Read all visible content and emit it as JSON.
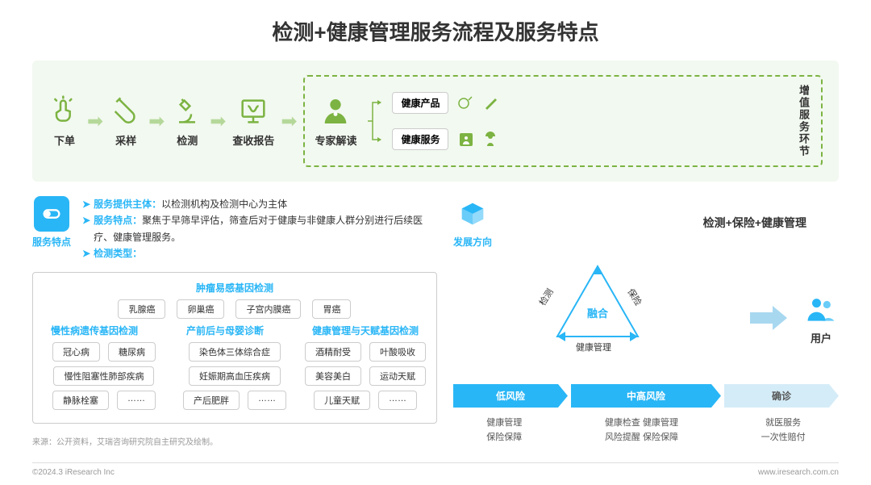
{
  "title": "检测+健康管理服务流程及服务特点",
  "process": {
    "steps": [
      "下单",
      "采样",
      "检测",
      "查收报告",
      "专家解读"
    ],
    "branches": [
      "健康产品",
      "健康服务"
    ],
    "vert": "增值服务环节"
  },
  "features": {
    "badge": "服务特点",
    "bullets": [
      {
        "t": "服务提供主体：",
        "d": "以检测机构及检测中心为主体"
      },
      {
        "t": "服务特点：",
        "d": "聚焦于早筛早评估，筛查后对于健康与非健康人群分别进行后续医疗、健康管理服务。"
      },
      {
        "t": "检测类型：",
        "d": ""
      }
    ]
  },
  "categories": {
    "sec1": {
      "header": "肿瘤易感基因检测",
      "tags": [
        "乳腺癌",
        "卵巢癌",
        "子宫内膜癌",
        "胃癌"
      ]
    },
    "headers2": [
      "慢性病遗传基因检测",
      "产前后与母婴诊断",
      "健康管理与天赋基因检测"
    ],
    "rows": [
      [
        [
          "冠心病",
          "糖尿病"
        ],
        [
          "染色体三体综合症"
        ],
        [
          "酒精耐受",
          "叶酸吸收"
        ]
      ],
      [
        [
          "慢性阻塞性肺部疾病"
        ],
        [
          "妊娠期高血压疾病"
        ],
        [
          "美容美白",
          "运动天赋"
        ]
      ],
      [
        [
          "静脉栓塞",
          "……"
        ],
        [
          "产后肥胖",
          "……"
        ],
        [
          "儿童天赋",
          "……"
        ]
      ]
    ]
  },
  "dev": {
    "badge": "发展方向",
    "title": "检测+保险+健康管理",
    "triangle": {
      "center": "融合",
      "labels": [
        "检测",
        "保险",
        "健康管理"
      ]
    },
    "user": "用户"
  },
  "risk": {
    "arrows": [
      "低风险",
      "中高风险",
      "确诊"
    ],
    "cols": [
      [
        "健康管理",
        "保险保障"
      ],
      [
        "健康检查  健康管理",
        "风险提醒  保险保障"
      ],
      [
        "就医服务",
        "一次性赔付"
      ]
    ]
  },
  "source": "来源：公开资料，艾瑞咨询研究院自主研究及绘制。",
  "footer": {
    "left": "©2024.3 iResearch Inc",
    "right": "www.iresearch.com.cn"
  },
  "colors": {
    "green": "#7cb342",
    "blue": "#29b6f6",
    "lightgreen": "#f2f9f0"
  }
}
